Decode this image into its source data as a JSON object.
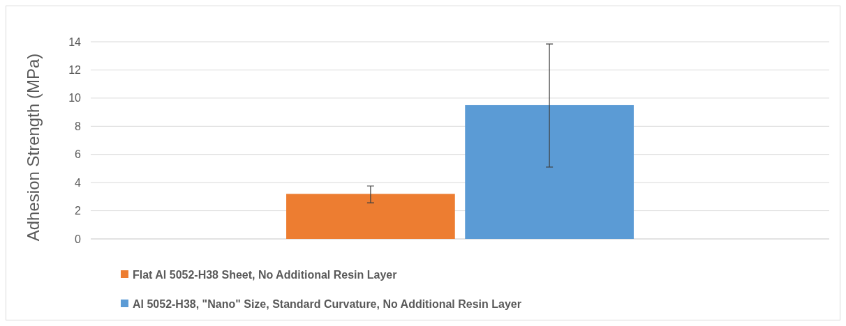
{
  "chart_data": {
    "type": "bar",
    "ylabel": "Adhesion Strength (MPa)",
    "categories": [
      null
    ],
    "series": [
      {
        "name": "Flat Al 5052-H38 Sheet, No Additional Resin Layer",
        "color": "#ed7d31",
        "values": [
          3.2
        ],
        "errors": [
          [
            2.57,
            3.76
          ]
        ]
      },
      {
        "name": "Al 5052-H38, \"Nano\" Size, Standard Curvature, No Additional Resin Layer",
        "color": "#5b9bd5",
        "values": [
          9.5
        ],
        "errors": [
          [
            5.1,
            13.85
          ]
        ]
      }
    ],
    "ylim": [
      0,
      14
    ],
    "yticks": [
      0,
      2,
      4,
      6,
      8,
      10,
      12,
      14
    ],
    "grid": "y",
    "legend": "bottom"
  }
}
